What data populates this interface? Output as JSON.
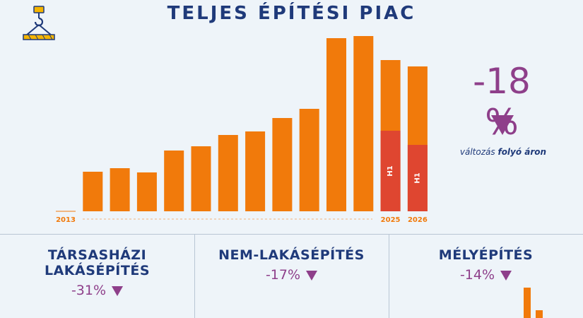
{
  "title": "TELJES ÉPÍTÉSI PIAC",
  "headline": {
    "change": "-18 %",
    "caption_start": "változás",
    "caption_bold": "folyó áron"
  },
  "colors": {
    "orange": "#f17a0b",
    "red": "#df4630",
    "navy": "#1f3a7a",
    "purple": "#8e3f8a"
  },
  "icons": {
    "header": "crane-hook-icon",
    "trend": "triangle-down-icon"
  },
  "chart_data": {
    "type": "bar",
    "title": "TELJES ÉPÍTÉSI PIAC",
    "x_tick_labels": [
      "2013",
      "2025",
      "2026"
    ],
    "values": [
      0,
      56,
      61,
      55,
      86,
      92,
      108,
      113,
      132,
      145,
      245,
      248,
      214,
      205
    ],
    "h1_values": [
      null,
      null,
      null,
      null,
      null,
      null,
      null,
      null,
      null,
      null,
      null,
      null,
      114,
      94
    ],
    "h1_label": "H1",
    "ylim": [
      0,
      260
    ]
  },
  "segments": [
    {
      "title": "TÁRSASHÁZI LAKÁSÉPÍTÉS",
      "change": "-31%"
    },
    {
      "title": "NEM-LAKÁSÉPÍTÉS",
      "change": "-17%"
    },
    {
      "title": "MÉLYÉPÍTÉS",
      "change": "-14%"
    }
  ]
}
